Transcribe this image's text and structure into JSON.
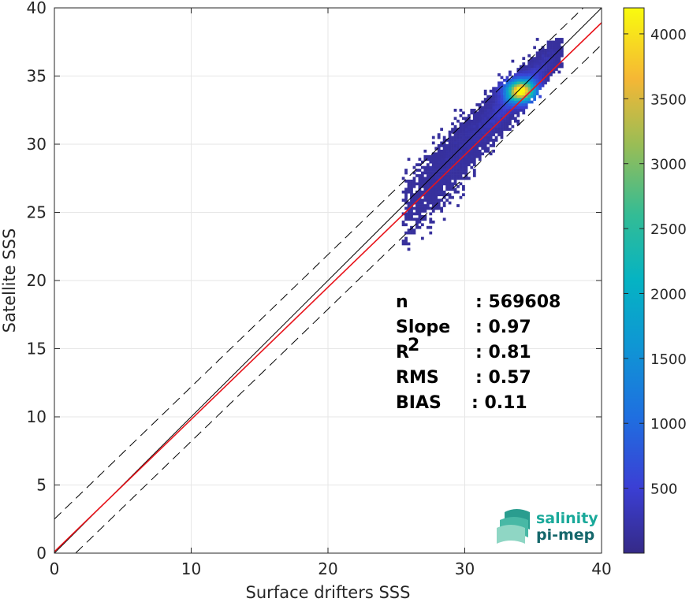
{
  "chart_data": {
    "type": "heatmap",
    "xlabel": "Surface drifters SSS",
    "ylabel": "Satellite SSS",
    "xlim": [
      0,
      40
    ],
    "ylim": [
      0,
      40
    ],
    "xticks": [
      "0",
      "10",
      "20",
      "30",
      "40"
    ],
    "yticks": [
      "0",
      "5",
      "10",
      "15",
      "20",
      "25",
      "30",
      "35",
      "40"
    ],
    "grid": true,
    "colormap": "parula",
    "colorbar": {
      "range": [
        0,
        4200
      ],
      "ticks": [
        "500",
        "1000",
        "1500",
        "2000",
        "2500",
        "3000",
        "3500",
        "4000"
      ],
      "tick_values": [
        500,
        1000,
        1500,
        2000,
        2500,
        3000,
        3500,
        4000
      ]
    },
    "lines": [
      {
        "role": "one-to-one",
        "color": "#000000",
        "style": "solid",
        "intercept": 0,
        "slope": 1
      },
      {
        "role": "regression",
        "color": "#e8141b",
        "style": "solid",
        "intercept": 0.11,
        "slope": 0.97
      },
      {
        "role": "upper-bound",
        "color": "#000000",
        "style": "dashed",
        "intercept": 2.5,
        "slope": 0.97
      },
      {
        "role": "lower-bound",
        "color": "#000000",
        "style": "dashed",
        "intercept": -1.5,
        "slope": 0.97
      }
    ],
    "density_core": {
      "x": 34,
      "y": 33.8,
      "peak_count": 4200
    },
    "stats": [
      {
        "label": "n",
        "value": ": 569608"
      },
      {
        "label": "Slope",
        "value": ": 0.97"
      },
      {
        "label": "R",
        "sup": "2",
        "value": ": 0.81"
      },
      {
        "label": "RMS",
        "value": ": 0.57"
      },
      {
        "label": "BIAS",
        "value": ": 0.11"
      }
    ]
  },
  "logo": {
    "line1": "salinity",
    "line2": "pi-mep",
    "color1": "#1aa99a",
    "color2": "#15676b"
  }
}
